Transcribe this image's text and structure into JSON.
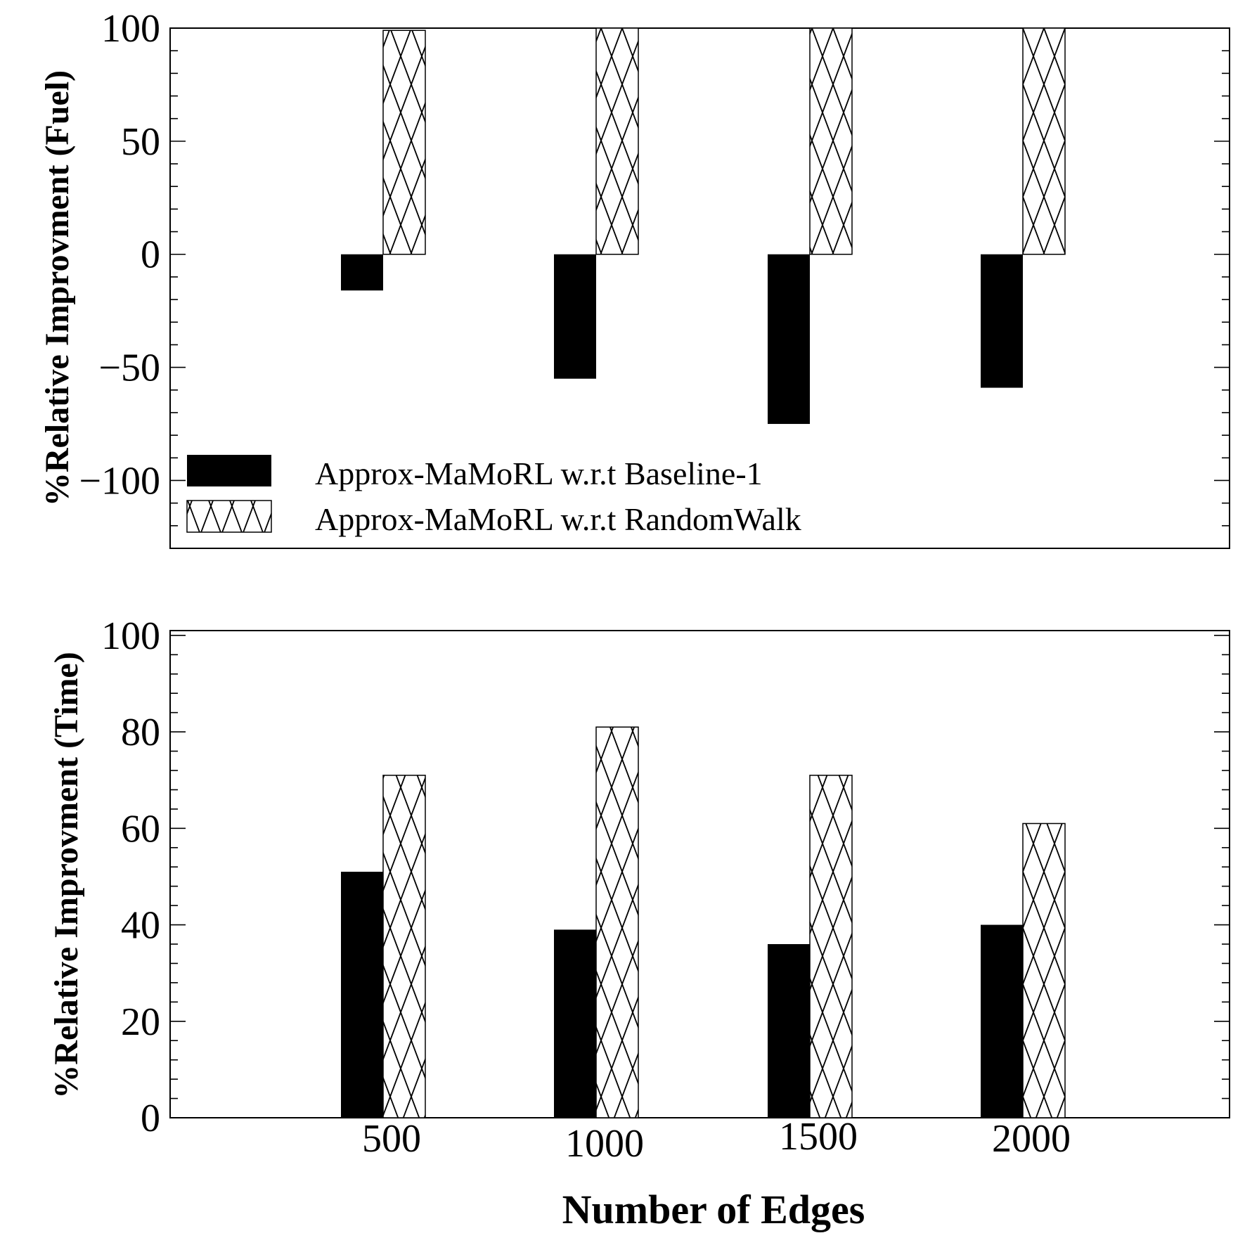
{
  "chart_data": [
    {
      "type": "bar",
      "categories": [
        "500",
        "1000",
        "1500",
        "2000"
      ],
      "series": [
        {
          "name": "Approx-MaMoRL w.r.t Baseline-1",
          "color": "#000000",
          "values": [
            -16,
            -55,
            -75,
            -59
          ]
        },
        {
          "name": "Approx-MaMoRL w.r.t RandomWalk",
          "pattern": "crosshatch",
          "values": [
            99,
            100,
            100,
            100
          ]
        }
      ],
      "ylabel": "%Relative Improvment (Fuel)",
      "ylim": [
        -130,
        100
      ],
      "yticks": [
        -100,
        -50,
        0,
        50,
        100
      ],
      "ytick_labels": [
        "−100",
        "−50",
        "0",
        "50",
        "100"
      ],
      "legend": "bottom-left"
    },
    {
      "type": "bar",
      "categories": [
        "500",
        "1000",
        "1500",
        "2000"
      ],
      "series": [
        {
          "name": "Approx-MaMoRL w.r.t Baseline-1",
          "color": "#000000",
          "values": [
            51,
            39,
            36,
            40
          ]
        },
        {
          "name": "Approx-MaMoRL w.r.t RandomWalk",
          "pattern": "crosshatch",
          "values": [
            71,
            81,
            71,
            61
          ]
        }
      ],
      "ylabel": "%Relative Improvment (Time)",
      "ylim": [
        0,
        101
      ],
      "yticks": [
        0,
        20,
        40,
        60,
        80,
        100
      ],
      "ytick_labels": [
        "0",
        "20",
        "40",
        "60",
        "80",
        "100"
      ],
      "xlabel": "Number of Edges",
      "xtick_labels": [
        "500",
        "1000",
        "1500",
        "2000"
      ]
    }
  ],
  "legend": {
    "entries": [
      "Approx-MaMoRL w.r.t Baseline-1",
      "Approx-MaMoRL w.r.t RandomWalk"
    ]
  }
}
